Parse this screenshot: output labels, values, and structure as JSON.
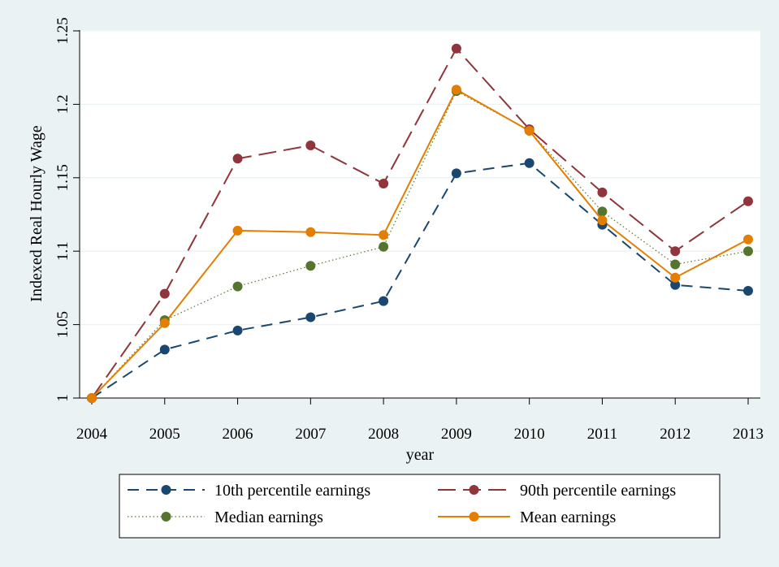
{
  "chart_data": {
    "type": "line",
    "title": "",
    "xlabel": "year",
    "ylabel": "Indexed Real Hourly Wage",
    "x": [
      2004,
      2005,
      2006,
      2007,
      2008,
      2009,
      2010,
      2011,
      2012,
      2013
    ],
    "x_tick_labels": [
      "2004",
      "2005",
      "2006",
      "2007",
      "2008",
      "2009",
      "2010",
      "2011",
      "2012",
      "2013"
    ],
    "y_ticks": [
      1,
      1.05,
      1.1,
      1.15,
      1.2,
      1.25
    ],
    "y_tick_labels": [
      "1",
      "1.05",
      "1.1",
      "1.15",
      "1.2",
      "1.25"
    ],
    "ylim": [
      1,
      1.25
    ],
    "grid": true,
    "legend_position": "bottom",
    "series": [
      {
        "name": "10th percentile earnings",
        "color": "#1a476f",
        "line_style": "dashed",
        "values": [
          1.0,
          1.033,
          1.046,
          1.055,
          1.066,
          1.153,
          1.16,
          1.118,
          1.077,
          1.073
        ]
      },
      {
        "name": "90th percentile earnings",
        "color": "#90353b",
        "line_style": "long-dashed",
        "values": [
          1.0,
          1.071,
          1.163,
          1.172,
          1.146,
          1.238,
          1.183,
          1.14,
          1.1,
          1.134
        ]
      },
      {
        "name": "Median earnings",
        "color": "#55752f",
        "line_style": "dotted",
        "values": [
          1.0,
          1.053,
          1.076,
          1.09,
          1.103,
          1.209,
          1.182,
          1.127,
          1.091,
          1.1
        ]
      },
      {
        "name": "Mean earnings",
        "color": "#e37e00",
        "line_style": "solid",
        "values": [
          1.0,
          1.051,
          1.114,
          1.113,
          1.111,
          1.21,
          1.182,
          1.121,
          1.082,
          1.108
        ]
      }
    ]
  }
}
